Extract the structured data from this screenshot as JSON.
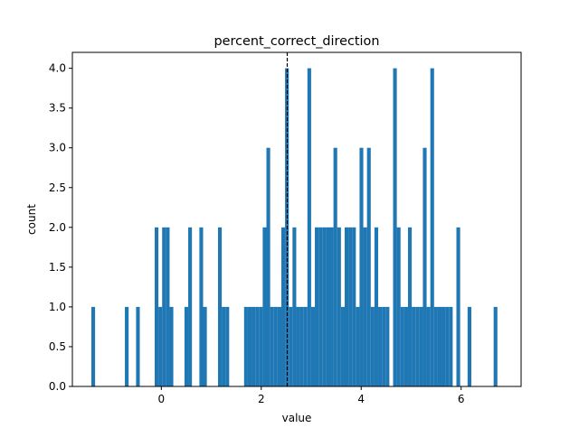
{
  "chart_data": {
    "type": "bar",
    "title": "percent_correct_direction",
    "xlabel": "value",
    "ylabel": "count",
    "xlim": [
      -1.78,
      7.2
    ],
    "ylim": [
      0,
      4.2
    ],
    "x_ticks": [
      0,
      2,
      4,
      6
    ],
    "x_tick_labels": [
      "0",
      "2",
      "4",
      "6"
    ],
    "y_ticks": [
      0,
      0.5,
      1,
      1.5,
      2,
      2.5,
      3,
      3.5,
      4
    ],
    "y_tick_labels": [
      "0.0",
      "0.5",
      "1.0",
      "1.5",
      "2.0",
      "2.5",
      "3.0",
      "3.5",
      "4.0"
    ],
    "bin_range": [
      -1.4,
      6.8
    ],
    "bin_count": 110,
    "counts": [
      1,
      0,
      0,
      0,
      0,
      0,
      0,
      0,
      0,
      1,
      0,
      0,
      1,
      0,
      0,
      0,
      0,
      2,
      1,
      2,
      2,
      1,
      0,
      0,
      0,
      1,
      2,
      0,
      0,
      2,
      1,
      0,
      0,
      0,
      2,
      1,
      1,
      0,
      0,
      0,
      0,
      1,
      1,
      1,
      1,
      1,
      2,
      3,
      1,
      1,
      1,
      2,
      4,
      1,
      2,
      1,
      1,
      1,
      4,
      1,
      2,
      2,
      2,
      2,
      2,
      3,
      2,
      1,
      2,
      2,
      2,
      1,
      3,
      2,
      3,
      1,
      2,
      1,
      1,
      1,
      0,
      4,
      2,
      1,
      1,
      2,
      1,
      1,
      1,
      3,
      1,
      4,
      1,
      1,
      1,
      1,
      1,
      0,
      2,
      0,
      0,
      1,
      0,
      0,
      0,
      0,
      0,
      0,
      1,
      0
    ],
    "color": "#1f77b4",
    "reference_line": {
      "x": 2.52,
      "style": "dashed",
      "color": "#000000"
    },
    "grid": false,
    "legend": "none"
  }
}
